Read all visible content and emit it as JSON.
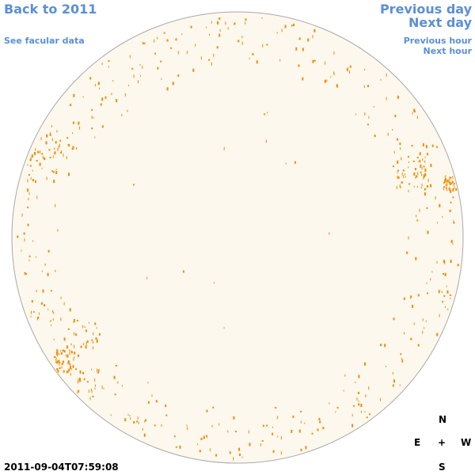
{
  "nav": {
    "back_label": "Back to 2011",
    "facular_label": "See facular data",
    "prev_day_label": "Previous day",
    "next_day_label": "Next day",
    "prev_hour_label": "Previous hour",
    "next_hour_label": "Next hour"
  },
  "compass": {
    "north": "N",
    "east": "E",
    "center": "+",
    "west": "W",
    "south": "S"
  },
  "timestamp": "2011-09-04T07:59:08",
  "colors": {
    "link": "#5b8fd9",
    "disk_fill": "#fdf8ee",
    "disk_stroke": "#a9a9a9",
    "features": "#f08c00",
    "text": "#000000"
  },
  "icons": {
    "solar_disk": "solar-disk-icon",
    "compass_center": "crosshair-icon"
  }
}
